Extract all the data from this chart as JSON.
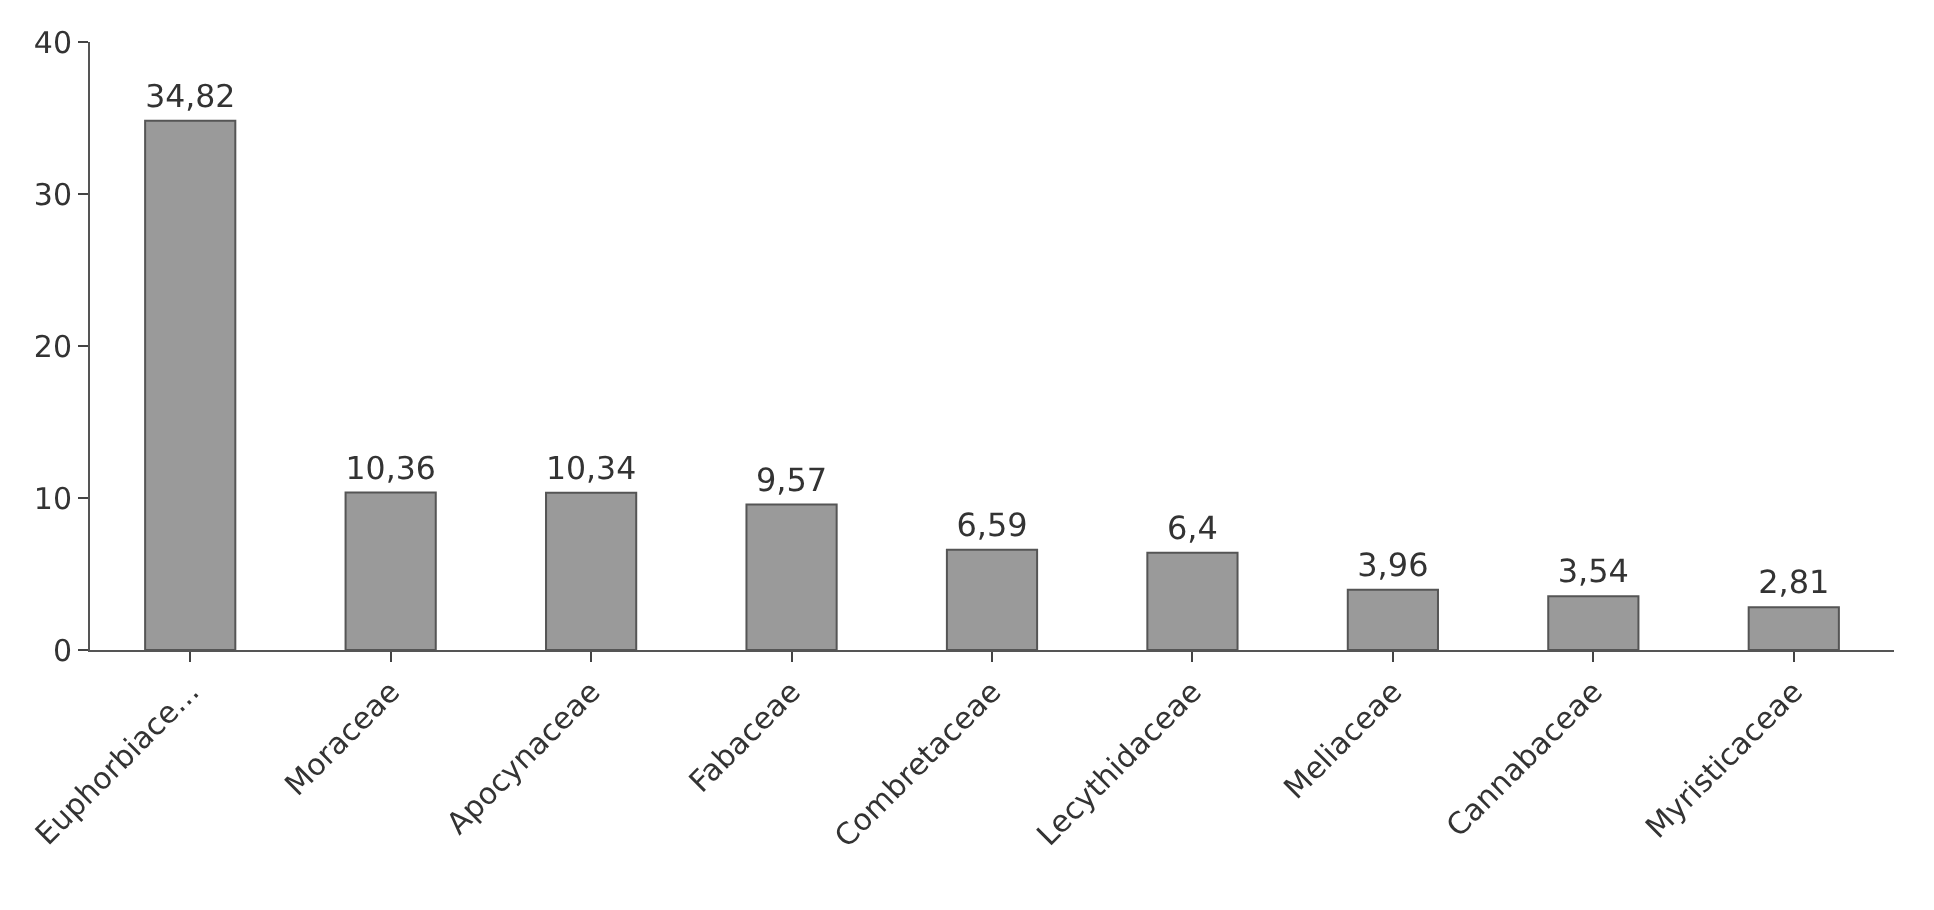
{
  "chart_data": {
    "type": "bar",
    "categories": [
      "Euphorbiace...",
      "Moraceae",
      "Apocynaceae",
      "Fabaceae",
      "Combretaceae",
      "Lecythidaceae",
      "Meliaceae",
      "Cannabaceae",
      "Myristicaceae"
    ],
    "values": [
      34.82,
      10.36,
      10.34,
      9.57,
      6.59,
      6.4,
      3.96,
      3.54,
      2.81
    ],
    "value_labels": [
      "34,82",
      "10,36",
      "10,34",
      "9,57",
      "6,59",
      "6,4",
      "3,96",
      "3,54",
      "2,81"
    ],
    "color": "#9a9a9a",
    "ylim": [
      0,
      40
    ],
    "yticks": [
      0,
      10,
      20,
      30,
      40
    ],
    "grid": false
  }
}
